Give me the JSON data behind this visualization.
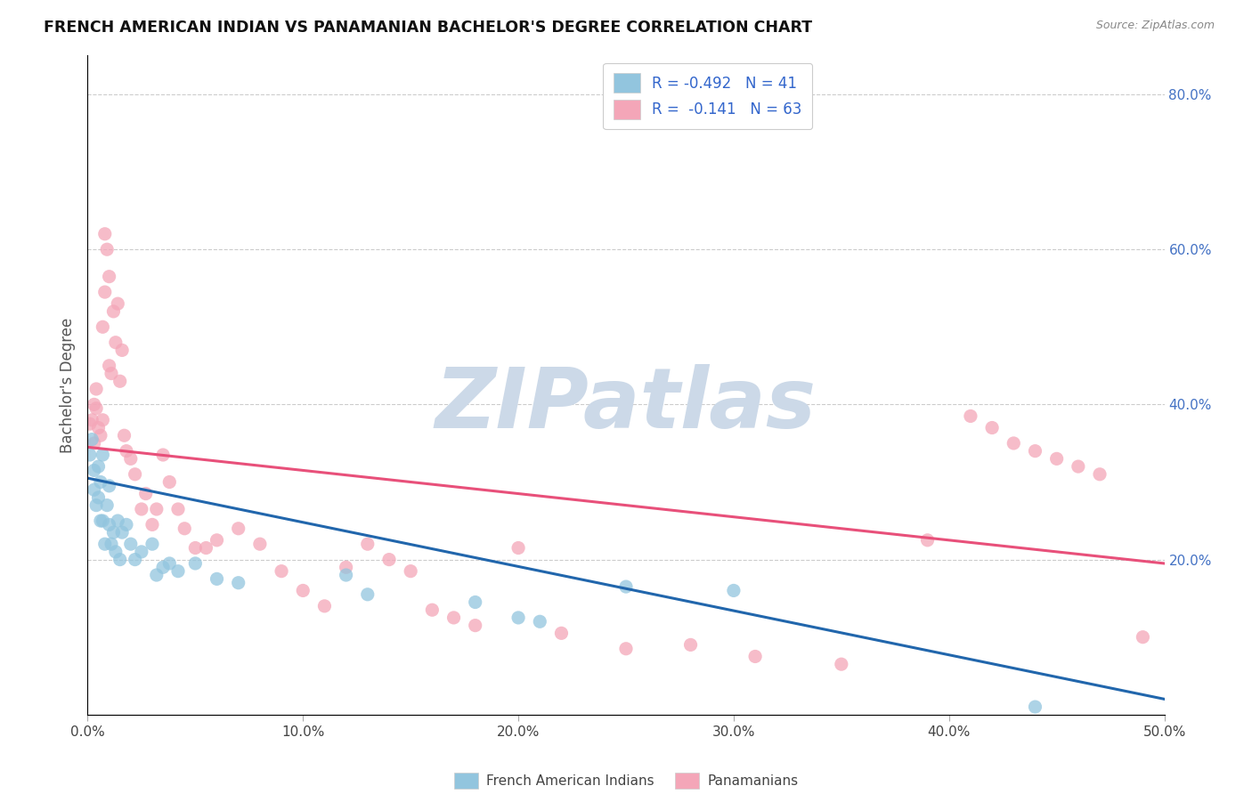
{
  "title": "FRENCH AMERICAN INDIAN VS PANAMANIAN BACHELOR'S DEGREE CORRELATION CHART",
  "source": "Source: ZipAtlas.com",
  "ylabel": "Bachelor's Degree",
  "xlim": [
    0.0,
    0.5
  ],
  "ylim": [
    0.0,
    0.85
  ],
  "x_ticks": [
    0.0,
    0.1,
    0.2,
    0.3,
    0.4,
    0.5
  ],
  "x_tick_labels": [
    "0.0%",
    "10.0%",
    "20.0%",
    "30.0%",
    "40.0%",
    "50.0%"
  ],
  "y_ticks_right": [
    0.2,
    0.4,
    0.6,
    0.8
  ],
  "y_tick_labels_right": [
    "20.0%",
    "40.0%",
    "60.0%",
    "80.0%"
  ],
  "blue_color": "#92c5de",
  "pink_color": "#f4a6b8",
  "blue_line_color": "#2166ac",
  "pink_line_color": "#e8507a",
  "watermark_color": "#ccd9e8",
  "R_blue": -0.492,
  "N_blue": 41,
  "R_pink": -0.141,
  "N_pink": 63,
  "legend_label_blue": "French American Indians",
  "legend_label_pink": "Panamanians",
  "blue_x": [
    0.001,
    0.002,
    0.003,
    0.003,
    0.004,
    0.005,
    0.005,
    0.006,
    0.006,
    0.007,
    0.007,
    0.008,
    0.009,
    0.01,
    0.01,
    0.011,
    0.012,
    0.013,
    0.014,
    0.015,
    0.016,
    0.018,
    0.02,
    0.022,
    0.025,
    0.03,
    0.032,
    0.035,
    0.038,
    0.042,
    0.05,
    0.06,
    0.07,
    0.12,
    0.13,
    0.18,
    0.2,
    0.21,
    0.25,
    0.3,
    0.44
  ],
  "blue_y": [
    0.335,
    0.355,
    0.315,
    0.29,
    0.27,
    0.32,
    0.28,
    0.3,
    0.25,
    0.25,
    0.335,
    0.22,
    0.27,
    0.245,
    0.295,
    0.22,
    0.235,
    0.21,
    0.25,
    0.2,
    0.235,
    0.245,
    0.22,
    0.2,
    0.21,
    0.22,
    0.18,
    0.19,
    0.195,
    0.185,
    0.195,
    0.175,
    0.17,
    0.18,
    0.155,
    0.145,
    0.125,
    0.12,
    0.165,
    0.16,
    0.01
  ],
  "pink_x": [
    0.001,
    0.002,
    0.003,
    0.003,
    0.004,
    0.004,
    0.005,
    0.006,
    0.007,
    0.007,
    0.008,
    0.008,
    0.009,
    0.01,
    0.01,
    0.011,
    0.012,
    0.013,
    0.014,
    0.015,
    0.016,
    0.017,
    0.018,
    0.02,
    0.022,
    0.025,
    0.027,
    0.03,
    0.032,
    0.035,
    0.038,
    0.042,
    0.045,
    0.05,
    0.055,
    0.06,
    0.07,
    0.08,
    0.09,
    0.1,
    0.11,
    0.12,
    0.13,
    0.14,
    0.15,
    0.16,
    0.17,
    0.18,
    0.2,
    0.22,
    0.25,
    0.28,
    0.31,
    0.35,
    0.39,
    0.41,
    0.42,
    0.43,
    0.44,
    0.45,
    0.46,
    0.47,
    0.49
  ],
  "pink_y": [
    0.375,
    0.38,
    0.4,
    0.35,
    0.395,
    0.42,
    0.37,
    0.36,
    0.38,
    0.5,
    0.545,
    0.62,
    0.6,
    0.565,
    0.45,
    0.44,
    0.52,
    0.48,
    0.53,
    0.43,
    0.47,
    0.36,
    0.34,
    0.33,
    0.31,
    0.265,
    0.285,
    0.245,
    0.265,
    0.335,
    0.3,
    0.265,
    0.24,
    0.215,
    0.215,
    0.225,
    0.24,
    0.22,
    0.185,
    0.16,
    0.14,
    0.19,
    0.22,
    0.2,
    0.185,
    0.135,
    0.125,
    0.115,
    0.215,
    0.105,
    0.085,
    0.09,
    0.075,
    0.065,
    0.225,
    0.385,
    0.37,
    0.35,
    0.34,
    0.33,
    0.32,
    0.31,
    0.1
  ]
}
